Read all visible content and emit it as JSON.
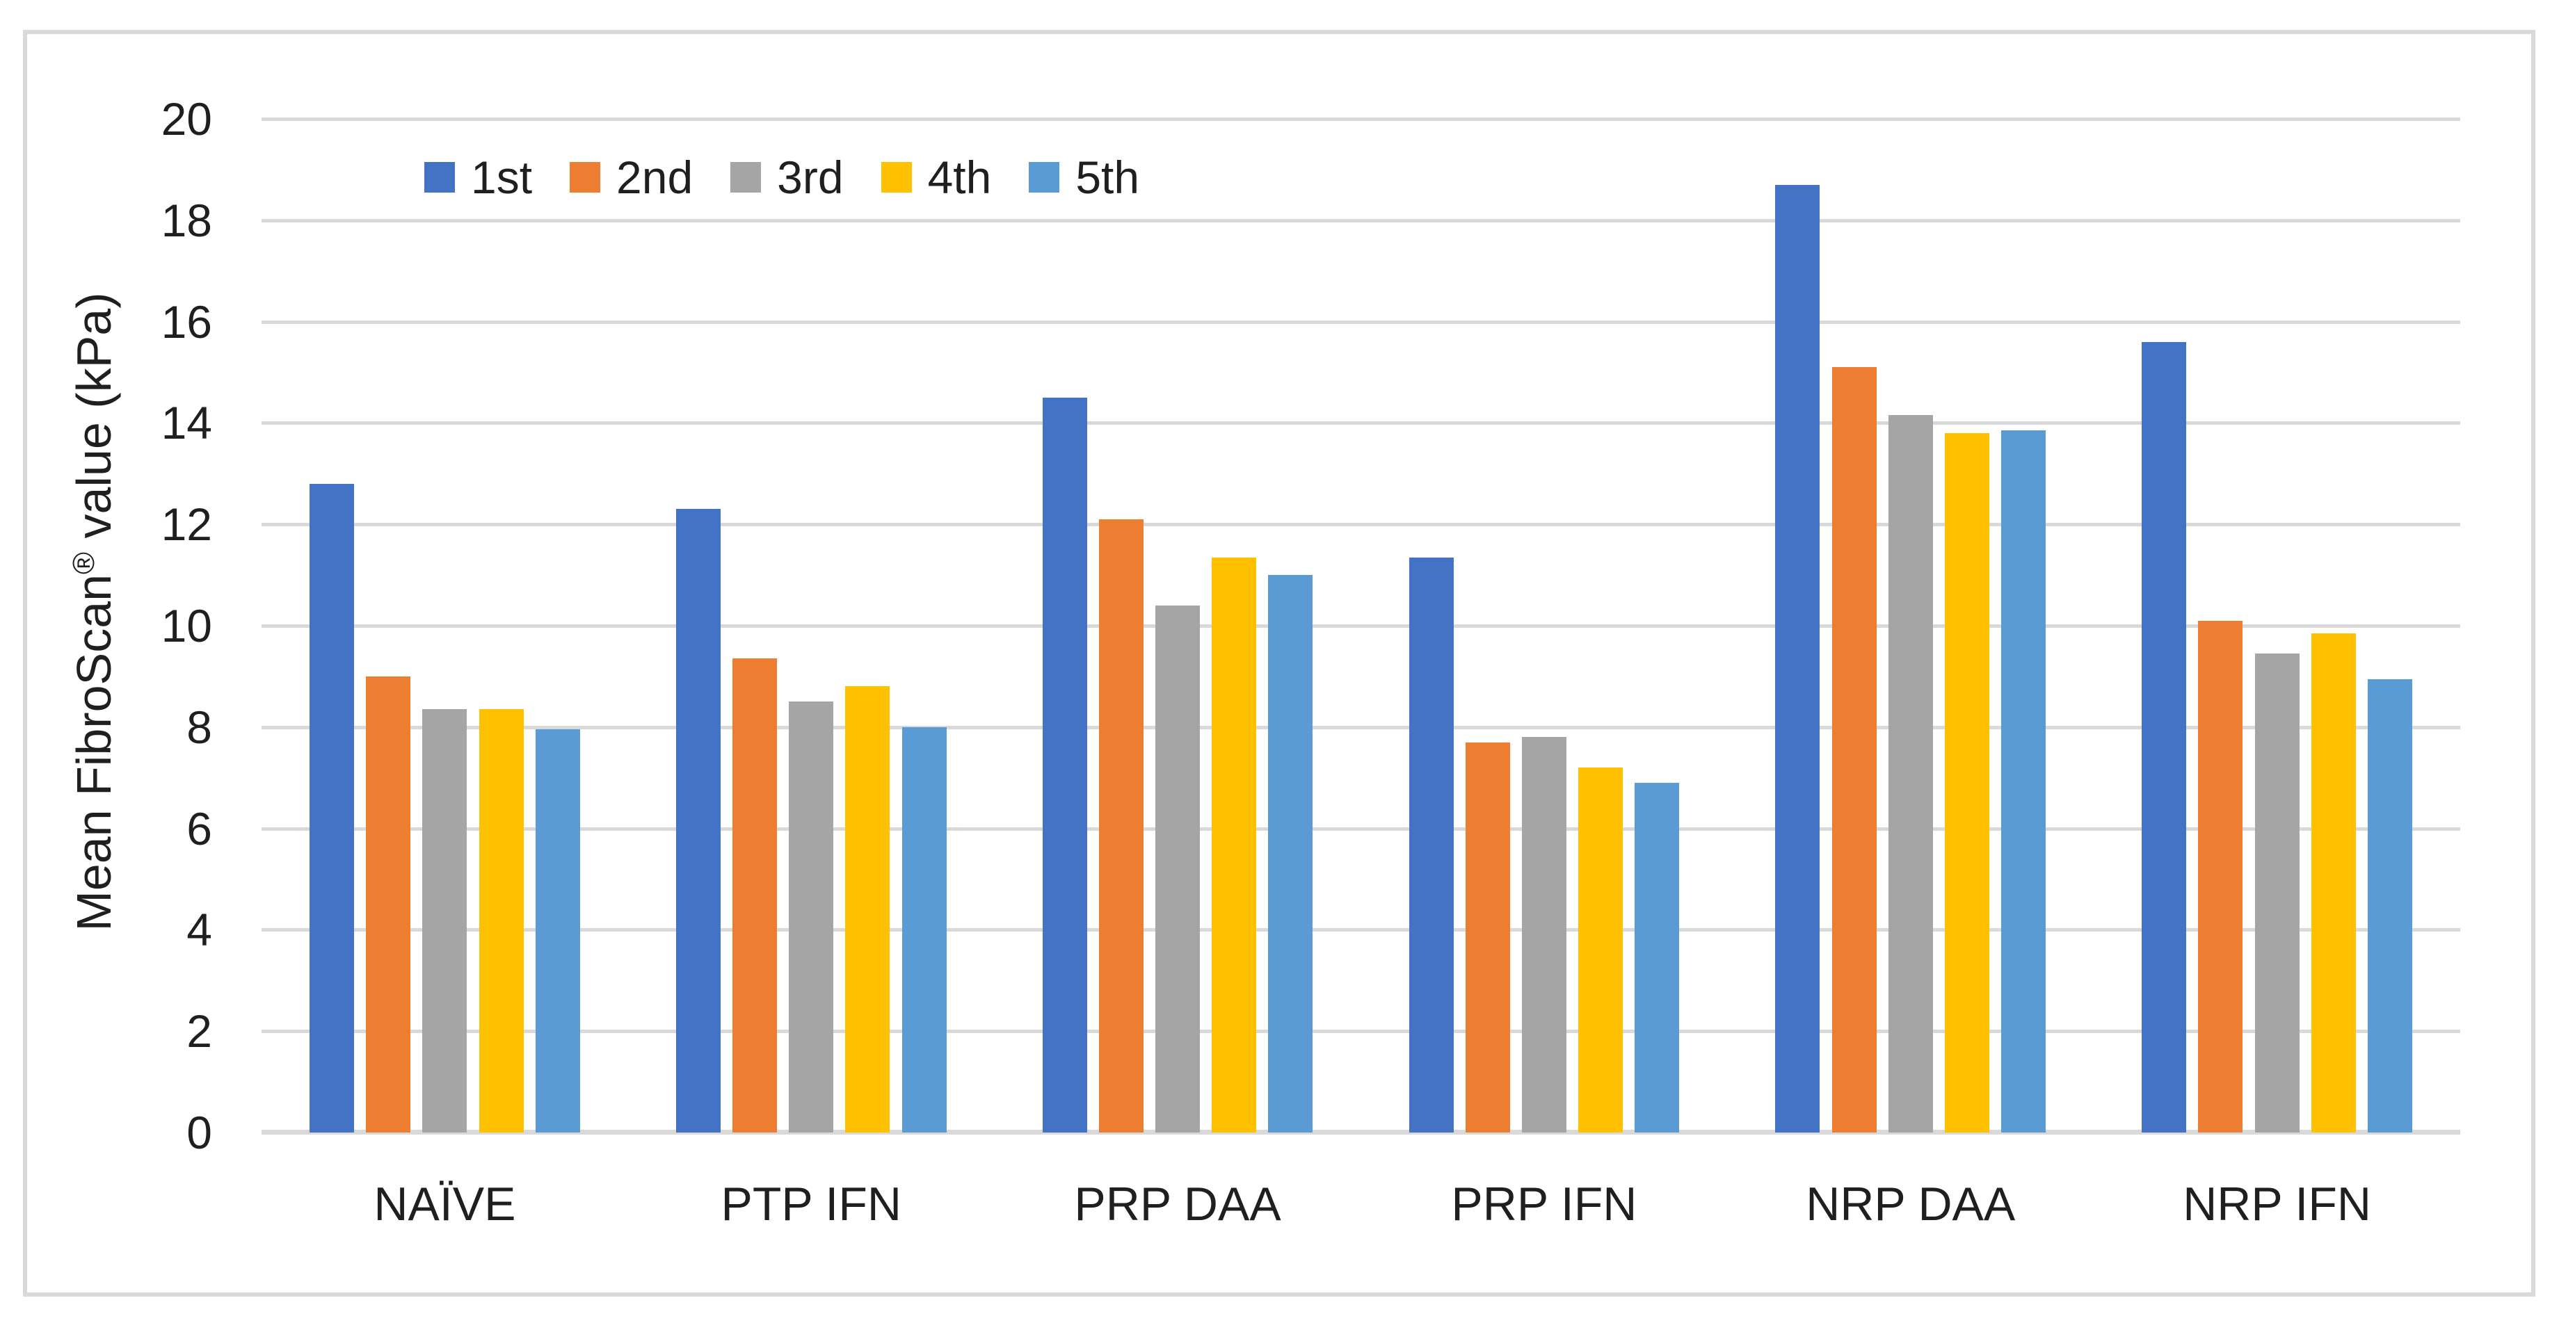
{
  "figure": {
    "background": "#FFFFFF",
    "border_color": "#D9D9D9"
  },
  "chart_data": {
    "type": "bar",
    "title": "",
    "xlabel": "",
    "ylabel": "Mean FibroScan® value (kPa)",
    "ylabel_parts": {
      "main": "Mean FibroScan",
      "sup": "®",
      "rest": " value (kPa)"
    },
    "categories": [
      "NAÏVE",
      "PTP IFN",
      "PRP DAA",
      "PRP IFN",
      "NRP DAA",
      "NRP IFN"
    ],
    "series": [
      {
        "name": "1st",
        "color": "#4472C4",
        "values": [
          12.8,
          12.3,
          14.5,
          11.35,
          18.7,
          15.6
        ]
      },
      {
        "name": "2nd",
        "color": "#ED7D31",
        "values": [
          9.0,
          9.35,
          12.1,
          7.7,
          15.1,
          10.1
        ]
      },
      {
        "name": "3rd",
        "color": "#A5A5A5",
        "values": [
          8.35,
          8.5,
          10.4,
          7.8,
          14.15,
          9.45
        ]
      },
      {
        "name": "4th",
        "color": "#FFC000",
        "values": [
          8.35,
          8.8,
          11.35,
          7.2,
          13.8,
          9.85
        ]
      },
      {
        "name": "5th",
        "color": "#5B9BD5",
        "values": [
          7.95,
          8.0,
          11.0,
          6.9,
          13.85,
          8.95
        ]
      }
    ],
    "ylim": [
      0,
      20
    ],
    "ytick_step": 2,
    "ytick_labels": [
      "0",
      "2",
      "4",
      "6",
      "8",
      "10",
      "12",
      "14",
      "16",
      "18",
      "20"
    ],
    "grid": "horizontal",
    "gridline_color": "#D9D9D9",
    "axis_line_color": "#D9D9D9",
    "text_color": "#1f1f1f",
    "legend_position": "top-inside",
    "legend_labels": [
      "1st",
      "2nd",
      "3rd",
      "4th",
      "5th"
    ]
  }
}
